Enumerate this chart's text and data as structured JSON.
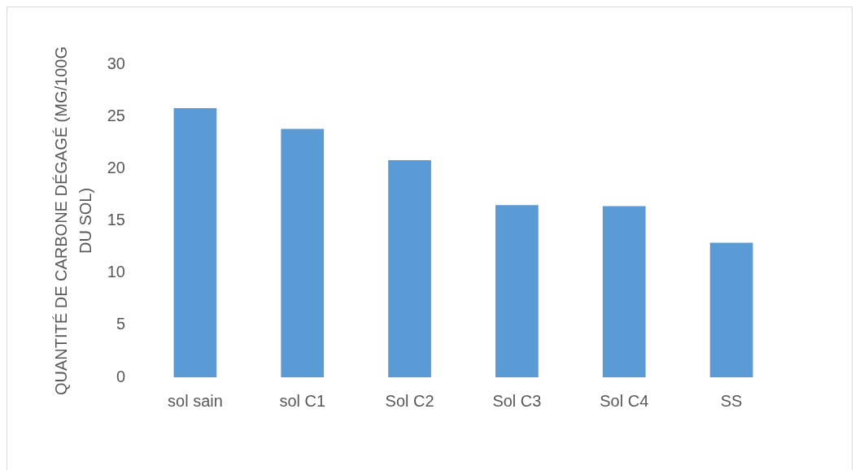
{
  "chart_data": {
    "type": "bar",
    "ylabel": "QUANTITÉ DE CARBONE DÉGAGÉ (MG/100G DU SOL)",
    "categories": [
      "sol sain",
      "sol C1",
      "Sol C2",
      "Sol C3",
      "Sol C4",
      "SS"
    ],
    "values": [
      25.8,
      23.8,
      20.8,
      16.5,
      16.4,
      12.9
    ],
    "color": "#5b9bd5",
    "ylim": [
      0,
      30
    ],
    "yticks": [
      0,
      5,
      10,
      15,
      20,
      25,
      30
    ]
  }
}
